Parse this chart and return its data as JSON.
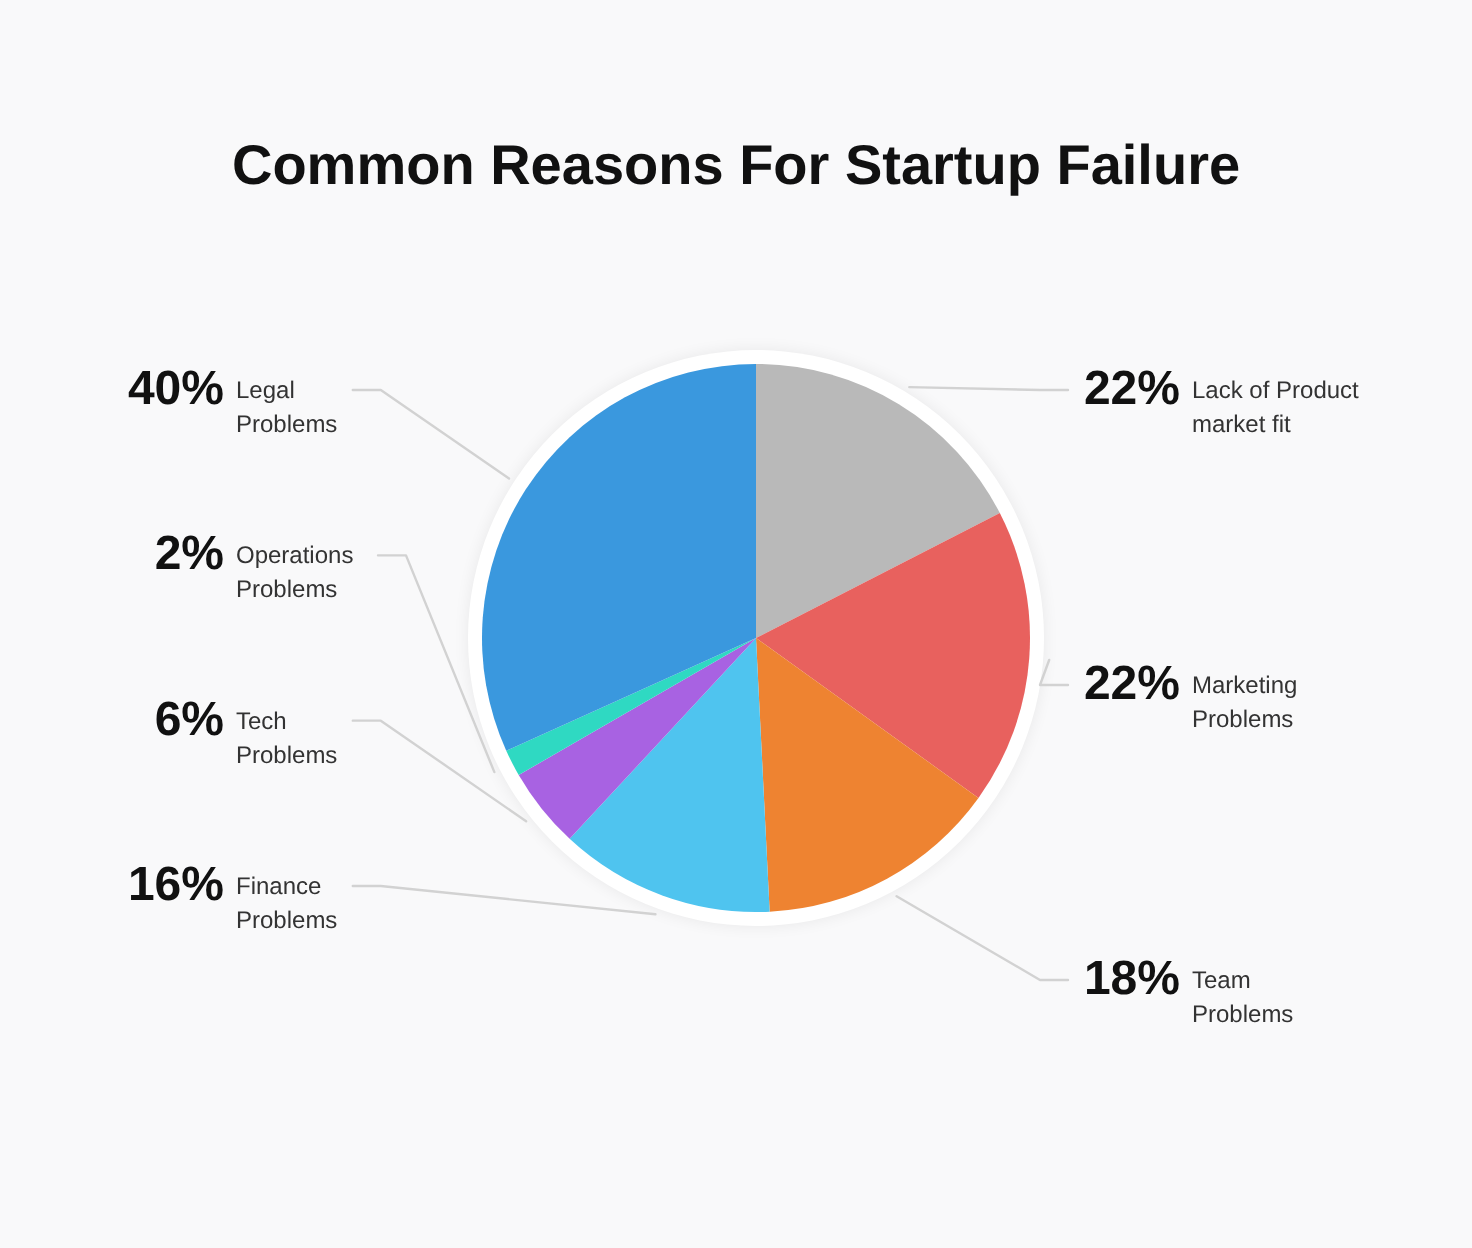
{
  "chart_data": {
    "type": "pie",
    "title": "Common Reasons For Startup Failure",
    "categories": [
      "Lack of Product market fit",
      "Marketing Problems",
      "Team Problems",
      "Finance Problems",
      "Tech Problems",
      "Operations Problems",
      "Legal Problems"
    ],
    "values": [
      22,
      22,
      18,
      16,
      6,
      2,
      40
    ],
    "value_labels": [
      "22%",
      "22%",
      "18%",
      "16%",
      "6%",
      "2%",
      "40%"
    ],
    "colors": [
      "#b9b9b9",
      "#e8615e",
      "#ee8331",
      "#4fc4ef",
      "#a862e2",
      "#2fd9c2",
      "#3a98de"
    ]
  }
}
